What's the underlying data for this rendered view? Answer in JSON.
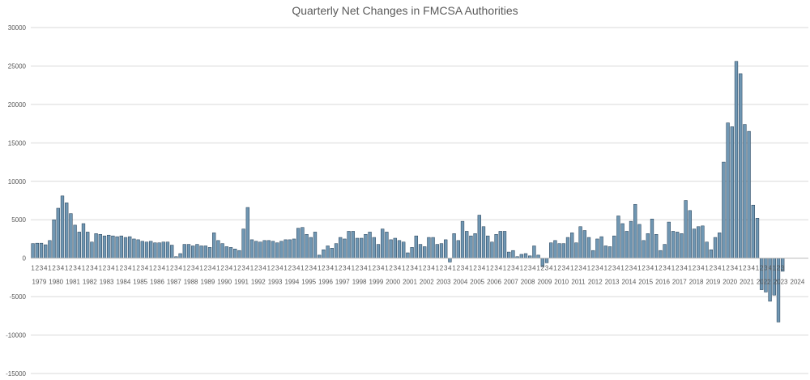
{
  "chart_data": {
    "type": "bar",
    "title": "Quarterly Net Changes in FMCSA Authorities",
    "xlabel": "",
    "ylabel": "",
    "ylim": [
      -15000,
      30000
    ],
    "yticks": [
      -15000,
      -10000,
      -5000,
      0,
      5000,
      10000,
      15000,
      20000,
      25000,
      30000
    ],
    "grid": true,
    "legend": "none",
    "bar_color": "#7097b3",
    "bar_edge_color": "#1f3a52",
    "grid_color": "#d9d9d9",
    "years": [
      "1979",
      "1980",
      "1981",
      "1982",
      "1983",
      "1984",
      "1985",
      "1986",
      "1987",
      "1988",
      "1989",
      "1990",
      "1991",
      "1992",
      "1993",
      "1994",
      "1995",
      "1996",
      "1997",
      "1998",
      "1999",
      "2000",
      "2001",
      "2002",
      "2003",
      "2004",
      "2005",
      "2006",
      "2007",
      "2008",
      "2009",
      "2010",
      "2011",
      "2012",
      "2013",
      "2014",
      "2015",
      "2016",
      "2017",
      "2018",
      "2019",
      "2020",
      "2021",
      "2022",
      "2023",
      "2024"
    ],
    "quarter_labels": [
      "1",
      "2",
      "3",
      "4"
    ],
    "values": [
      1900,
      1950,
      1950,
      1750,
      2300,
      5000,
      6500,
      8100,
      7200,
      5800,
      4300,
      3400,
      4500,
      3400,
      2100,
      3200,
      3100,
      2900,
      3000,
      2900,
      2800,
      2900,
      2700,
      2800,
      2500,
      2400,
      2200,
      2100,
      2200,
      2000,
      2000,
      2100,
      2100,
      1700,
      200,
      600,
      1800,
      1800,
      1600,
      1800,
      1600,
      1600,
      1400,
      3300,
      2300,
      1900,
      1500,
      1400,
      1200,
      1000,
      3800,
      6600,
      2400,
      2200,
      2100,
      2300,
      2300,
      2200,
      2000,
      2200,
      2400,
      2400,
      2500,
      3900,
      4000,
      3100,
      2700,
      3400,
      400,
      1100,
      1600,
      1300,
      1900,
      2700,
      2500,
      3500,
      3500,
      2600,
      2600,
      3100,
      3400,
      2700,
      1800,
      3800,
      3400,
      2400,
      2600,
      2300,
      2100,
      700,
      1400,
      2900,
      1800,
      1500,
      2700,
      2700,
      1800,
      1900,
      2400,
      -500,
      3200,
      2300,
      4800,
      3500,
      2900,
      3200,
      5600,
      4100,
      2900,
      2100,
      3100,
      3500,
      3500,
      800,
      1000,
      200,
      500,
      600,
      300,
      1600,
      400,
      -1100,
      -600,
      2000,
      2300,
      1900,
      1900,
      2700,
      3300,
      2000,
      4100,
      3600,
      2700,
      1000,
      2500,
      2800,
      1600,
      1500,
      2900,
      5500,
      4500,
      3500,
      4800,
      7000,
      4400,
      2300,
      3200,
      5100,
      3100,
      1000,
      1800,
      4700,
      3500,
      3400,
      3200,
      7500,
      6200,
      3800,
      4100,
      4200,
      2100,
      1100,
      2700,
      3300,
      12500,
      17600,
      17100,
      25600,
      24000,
      17400,
      16500,
      6900,
      5200,
      -4100,
      -4400,
      -5600,
      -4800,
      -8300,
      -1700
    ]
  }
}
